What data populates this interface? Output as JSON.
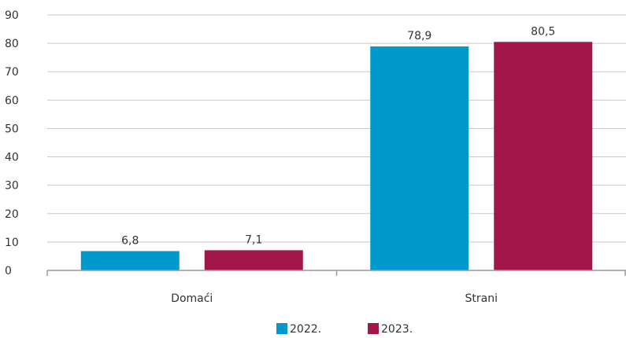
{
  "chart_data": {
    "type": "bar",
    "categories": [
      "Domaći",
      "Strani"
    ],
    "series": [
      {
        "name": "2022.",
        "values": [
          6.8,
          78.9
        ],
        "labels": [
          "6,8",
          "78,9"
        ],
        "color": "#0099cc"
      },
      {
        "name": "2023.",
        "values": [
          7.1,
          80.5
        ],
        "labels": [
          "7,1",
          "80,5"
        ],
        "color": "#a3164a"
      }
    ],
    "yticks": [
      0,
      10,
      20,
      30,
      40,
      50,
      60,
      70,
      80,
      90
    ],
    "ylim": [
      0,
      90
    ],
    "grid": true,
    "legend_position": "bottom-center"
  }
}
